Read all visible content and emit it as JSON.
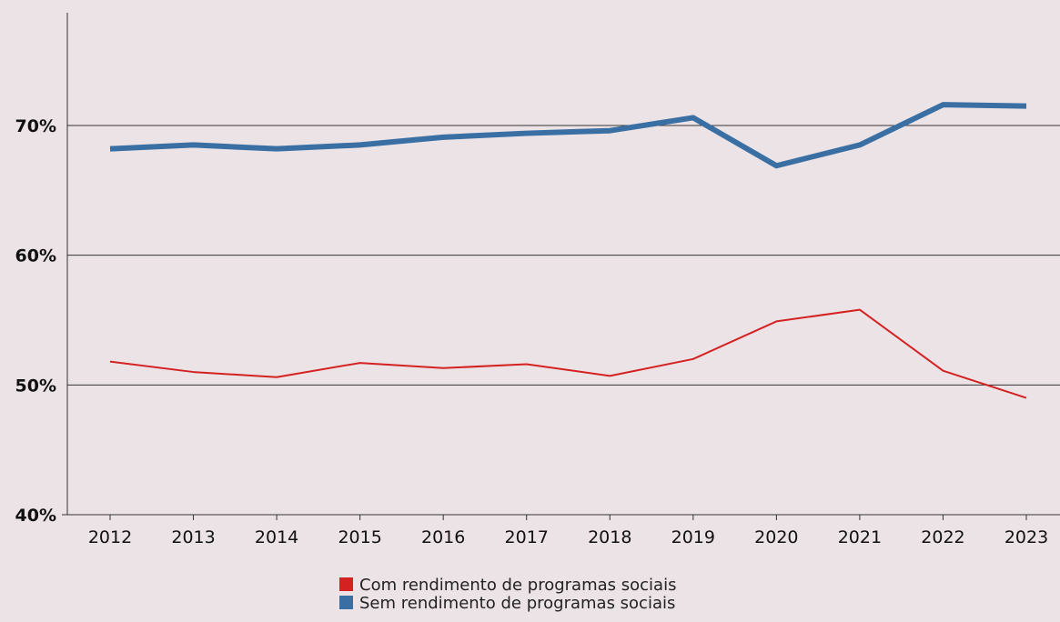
{
  "chart_data": {
    "type": "line",
    "title": "",
    "xlabel": "",
    "ylabel": "",
    "categories": [
      "2012",
      "2013",
      "2014",
      "2015",
      "2016",
      "2017",
      "2018",
      "2019",
      "2020",
      "2021",
      "2022",
      "2023"
    ],
    "y_ticks": [
      {
        "value": 40,
        "label": "40%"
      },
      {
        "value": 50,
        "label": "50%"
      },
      {
        "value": 60,
        "label": "60%"
      },
      {
        "value": 70,
        "label": "70%"
      }
    ],
    "ylim": [
      40,
      80
    ],
    "grid": "horizontal at 50%, 60%, 70%",
    "legend_position": "bottom-center",
    "series": [
      {
        "name": "Com rendimento de programas sociais",
        "color": "#d42222",
        "values": [
          51.8,
          51.0,
          50.6,
          51.7,
          51.3,
          51.6,
          50.7,
          52.0,
          54.9,
          55.8,
          51.1,
          49.0
        ]
      },
      {
        "name": "Sem rendimento de programas sociais",
        "color": "#3a6fa4",
        "values": [
          68.2,
          68.5,
          68.2,
          68.5,
          69.1,
          69.4,
          69.6,
          70.6,
          66.9,
          68.5,
          71.6,
          71.5
        ]
      }
    ]
  }
}
